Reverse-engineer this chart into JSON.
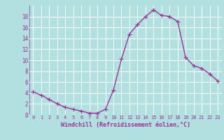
{
  "x": [
    0,
    1,
    2,
    3,
    4,
    5,
    6,
    7,
    8,
    9,
    10,
    11,
    12,
    13,
    14,
    15,
    16,
    17,
    18,
    19,
    20,
    21,
    22,
    23
  ],
  "y": [
    4.2,
    3.6,
    2.8,
    2.0,
    1.4,
    1.0,
    0.7,
    0.3,
    0.3,
    1.0,
    4.5,
    10.2,
    14.8,
    16.5,
    18.0,
    19.2,
    18.2,
    18.0,
    17.1,
    10.5,
    9.0,
    8.5,
    7.5,
    6.2
  ],
  "line_color": "#993399",
  "marker": "+",
  "marker_size": 4,
  "bg_color": "#b2dfdf",
  "grid_color": "#ffffff",
  "xlabel": "Windchill (Refroidissement éolien,°C)",
  "xlabel_color": "#993399",
  "tick_color": "#993399",
  "xlim": [
    -0.5,
    23.5
  ],
  "ylim": [
    0,
    20
  ],
  "yticks": [
    0,
    2,
    4,
    6,
    8,
    10,
    12,
    14,
    16,
    18
  ],
  "xticks": [
    0,
    1,
    2,
    3,
    4,
    5,
    6,
    7,
    8,
    9,
    10,
    11,
    12,
    13,
    14,
    15,
    16,
    17,
    18,
    19,
    20,
    21,
    22,
    23
  ],
  "linewidth": 1.0
}
